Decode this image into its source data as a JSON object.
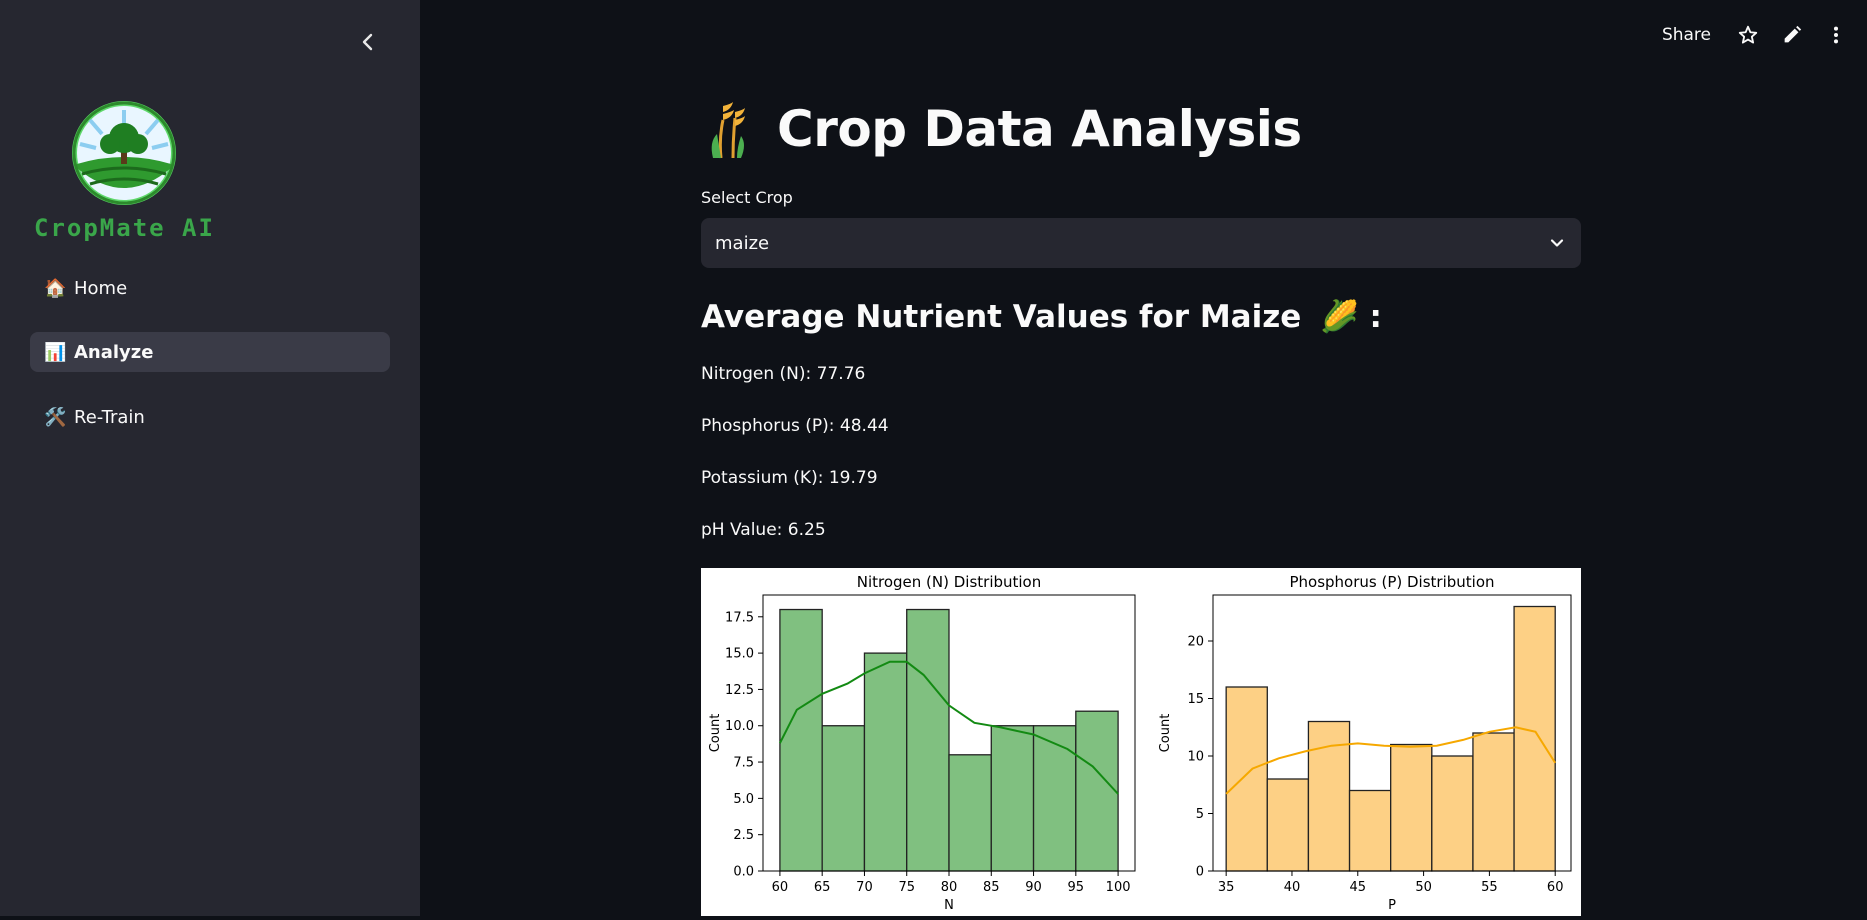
{
  "sidebar": {
    "logo_text": "CropMate AI",
    "items": [
      {
        "emoji": "🏠",
        "label": "Home"
      },
      {
        "emoji": "📊",
        "label": "Analyze"
      },
      {
        "emoji": "🛠️",
        "label": "Re-Train"
      }
    ]
  },
  "header": {
    "share_label": "Share"
  },
  "main": {
    "title": "Crop Data Analysis",
    "select_label": "Select Crop",
    "select_value": "maize",
    "section_title": "Average Nutrient Values for Maize",
    "section_emoji": "🌽",
    "section_suffix": ":",
    "stats": [
      "Nitrogen (N): 77.76",
      "Phosphorus (P): 48.44",
      "Potassium (K): 19.79",
      "pH Value: 6.25"
    ]
  },
  "chart_data": [
    {
      "type": "bar",
      "title": "Nitrogen (N) Distribution",
      "xlabel": "N",
      "ylabel": "Count",
      "bin_edges": [
        60,
        65,
        70,
        75,
        80,
        85,
        90,
        95,
        100
      ],
      "values": [
        18,
        10,
        15,
        18,
        8,
        10,
        10,
        11
      ],
      "xlim": [
        58,
        102
      ],
      "ylim": [
        0,
        19
      ],
      "xticks": [
        "60",
        "65",
        "70",
        "75",
        "80",
        "85",
        "90",
        "95",
        "100"
      ],
      "yticks": [
        "0.0",
        "2.5",
        "5.0",
        "7.5",
        "10.0",
        "12.5",
        "15.0",
        "17.5"
      ],
      "kde": [
        [
          60,
          8.8
        ],
        [
          62,
          11.1
        ],
        [
          65,
          12.2
        ],
        [
          68,
          12.9
        ],
        [
          70,
          13.6
        ],
        [
          73,
          14.4
        ],
        [
          75,
          14.4
        ],
        [
          77,
          13.5
        ],
        [
          80,
          11.4
        ],
        [
          83,
          10.2
        ],
        [
          86,
          9.9
        ],
        [
          90,
          9.4
        ],
        [
          94,
          8.4
        ],
        [
          97,
          7.2
        ],
        [
          100,
          5.3
        ]
      ],
      "colors": {
        "bar": "#80c080",
        "edge": "#222222",
        "kde": "#138a13"
      }
    },
    {
      "type": "bar",
      "title": "Phosphorus (P) Distribution",
      "xlabel": "P",
      "ylabel": "Count",
      "bin_edges": [
        35,
        38.125,
        41.25,
        44.375,
        47.5,
        50.625,
        53.75,
        56.875,
        60
      ],
      "values": [
        16,
        8,
        13,
        7,
        11,
        10,
        12,
        23
      ],
      "xlim": [
        34,
        61.2
      ],
      "ylim": [
        0,
        24
      ],
      "xticks": [
        "35",
        "40",
        "45",
        "50",
        "55",
        "60"
      ],
      "yticks": [
        "0",
        "5",
        "10",
        "15",
        "20"
      ],
      "kde": [
        [
          35,
          6.7
        ],
        [
          37,
          8.9
        ],
        [
          39,
          9.8
        ],
        [
          41,
          10.4
        ],
        [
          43,
          10.9
        ],
        [
          45,
          11.1
        ],
        [
          47,
          10.9
        ],
        [
          49,
          10.8
        ],
        [
          51,
          10.9
        ],
        [
          53,
          11.4
        ],
        [
          55,
          12.1
        ],
        [
          57,
          12.5
        ],
        [
          58.5,
          12.1
        ],
        [
          60,
          9.4
        ]
      ],
      "colors": {
        "bar": "#fdd085",
        "edge": "#222222",
        "kde": "#f6a800"
      }
    }
  ]
}
